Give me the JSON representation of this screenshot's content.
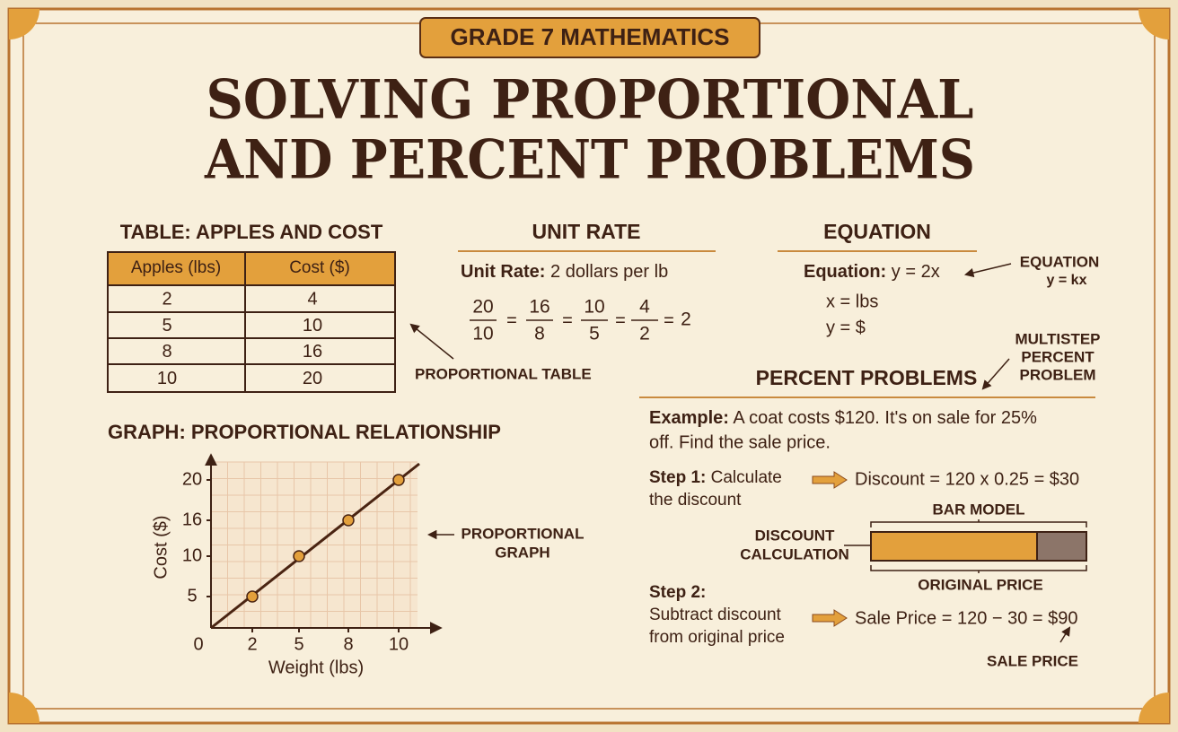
{
  "badge": "GRADE 7 MATHEMATICS",
  "title": [
    "SOLVING PROPORTIONAL",
    "AND PERCENT PROBLEMS"
  ],
  "table": {
    "title": "TABLE: APPLES AND COST",
    "headers": [
      "Apples (lbs)",
      "Cost ($)"
    ],
    "rows": [
      [
        2,
        4
      ],
      [
        5,
        10
      ],
      [
        8,
        16
      ],
      [
        10,
        20
      ]
    ],
    "callout": "PROPORTIONAL TABLE"
  },
  "unit_rate": {
    "heading": "UNIT RATE",
    "label": "Unit Rate:",
    "text": "2 dollars per lb",
    "fractions": [
      [
        20,
        10
      ],
      [
        16,
        8
      ],
      [
        10,
        5
      ],
      [
        4,
        2
      ]
    ],
    "operator": "=",
    "result": 2
  },
  "equation": {
    "heading": "EQUATION",
    "label": "Equation:",
    "text": "y = 2x",
    "lines": [
      "x = lbs",
      "y = $"
    ],
    "callout": [
      "EQUATION",
      "y = kx"
    ]
  },
  "graph": {
    "title": "GRAPH: PROPORTIONAL RELATIONSHIP",
    "x_label": "Weight (lbs)",
    "y_label": "Cost ($)",
    "origin": 0,
    "x_ticks": [
      2,
      5,
      8,
      10
    ],
    "y_ticks": [
      5,
      10,
      16,
      20
    ],
    "callout": [
      "PROPORTIONAL",
      "GRAPH"
    ]
  },
  "percent": {
    "callout": [
      "MULTISTEP",
      "PERCENT",
      "PROBLEM"
    ],
    "heading": "PERCENT PROBLEMS",
    "example_label": "Example:",
    "example": [
      "A coat costs $120. It's on sale for 25%",
      "off. Find the sale price."
    ],
    "step1_label": "Step 1:",
    "step1": [
      "Calculate",
      "the discount"
    ],
    "step1_result": "Discount = 120 x 0.25 = $30",
    "bar_model": "BAR MODEL",
    "bar_left": [
      "DISCOUNT",
      "CALCULATION"
    ],
    "bar_bottom": "ORIGINAL PRICE",
    "step2_label": "Step 2:",
    "step2": [
      "Subtract discount",
      "from original price"
    ],
    "step2_result": "Sale Price = 120 − 30 = $90",
    "step2_callout": "SALE PRICE"
  }
}
